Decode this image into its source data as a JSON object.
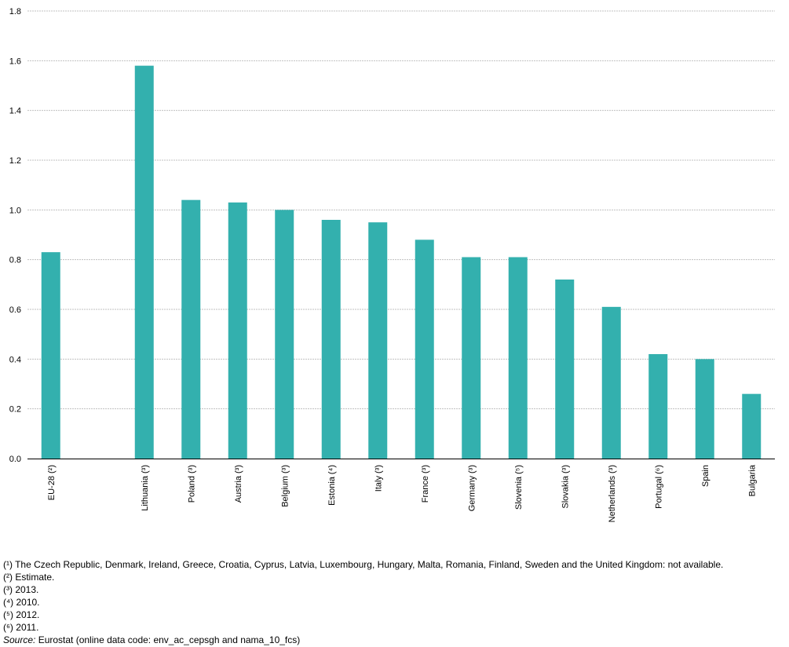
{
  "chart_data": {
    "type": "bar",
    "categories": [
      "EU-28 (²)",
      "",
      "Lithuania (³)",
      "Poland (³)",
      "Austria (³)",
      "Belgium (³)",
      "Estonia (⁴)",
      "Italy (³)",
      "France (³)",
      "Germany (³)",
      "Slovenia (⁵)",
      "Slovakia (³)",
      "Netherlands (³)",
      "Portugal (⁶)",
      "Spain",
      "Bulgaria"
    ],
    "values": [
      0.83,
      null,
      1.58,
      1.04,
      1.03,
      1.0,
      0.96,
      0.95,
      0.88,
      0.81,
      0.81,
      0.72,
      0.61,
      0.42,
      0.4,
      0.26
    ],
    "ylim": [
      0,
      1.8
    ],
    "yticks": [
      0,
      0.2,
      0.4,
      0.6,
      0.8,
      1.0,
      1.2,
      1.4,
      1.6,
      1.8
    ],
    "ytick_labels": [
      "0.0",
      "0.2",
      "0.4",
      "0.6",
      "0.8",
      "1.0",
      "1.2",
      "1.4",
      "1.6",
      "1.8"
    ],
    "grid": true,
    "bar_color": "#33b0ae",
    "grid_color": "#c0c0c0"
  },
  "footnotes": [
    "(¹) The Czech Republic, Denmark, Ireland, Greece, Croatia, Cyprus, Latvia, Luxembourg, Hungary, Malta, Romania, Finland, Sweden and the United Kingdom: not available.",
    "(²) Estimate.",
    "(³) 2013.",
    "(⁴) 2010.",
    "(⁵) 2012.",
    "(⁶) 2011."
  ],
  "source": {
    "label": "Source:",
    "text": " Eurostat (online data code: env_ac_cepsgh and nama_10_fcs)"
  }
}
